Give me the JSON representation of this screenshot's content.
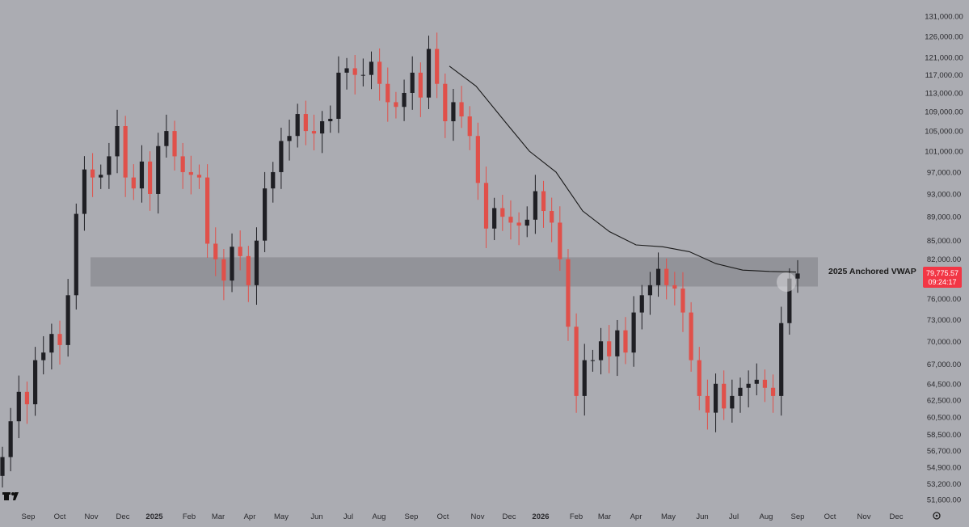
{
  "chart_data": {
    "type": "candlestick",
    "title": "",
    "xlabel": "",
    "ylabel": "",
    "x_tick_labels": [
      "Sep",
      "Oct",
      "Nov",
      "Dec",
      "2025",
      "Feb",
      "Mar",
      "Apr",
      "May",
      "Jun",
      "Jul",
      "Aug",
      "Sep",
      "Oct",
      "Nov",
      "Dec",
      "2026",
      "Feb",
      "Mar",
      "Apr",
      "May",
      "Jun",
      "Jul",
      "Aug",
      "Sep",
      "Oct",
      "Nov",
      "Dec"
    ],
    "y_tick_labels": [
      "131,000.00",
      "126,000.00",
      "121,000.00",
      "117,000.00",
      "113,000.00",
      "109,000.00",
      "105,000.00",
      "101,000.00",
      "97,000.00",
      "93,000.00",
      "89,000.00",
      "85,000.00",
      "82,000.00",
      "79,000.00",
      "76,000.00",
      "73,000.00",
      "70,000.00",
      "67,000.00",
      "64,500.00",
      "62,500.00",
      "60,500.00",
      "58,500.00",
      "56,700.00",
      "54,900.00",
      "53,200.00",
      "51,600.00"
    ],
    "y_tick_values": [
      131000,
      126000,
      121000,
      117000,
      113000,
      109000,
      105000,
      101000,
      97000,
      93000,
      89000,
      85000,
      82000,
      79000,
      76000,
      73000,
      70000,
      67000,
      64500,
      62500,
      60500,
      58500,
      56700,
      54900,
      53200,
      51600
    ],
    "y_scale": "log",
    "ylim": [
      50800,
      133500
    ],
    "grid": false,
    "series": [
      {
        "values": [
          {
            "x": "2024-09",
            "close": 56000
          },
          {
            "x": "2024-09",
            "close": 60000
          },
          {
            "x": "2024-09",
            "close": 63500
          },
          {
            "x": "2024-10",
            "close": 62000
          },
          {
            "x": "2024-10",
            "close": 67500
          },
          {
            "x": "2024-10",
            "close": 68500
          },
          {
            "x": "2024-10",
            "close": 71000
          },
          {
            "x": "2024-11",
            "close": 69500
          },
          {
            "x": "2024-11",
            "close": 76500
          },
          {
            "x": "2024-11",
            "close": 89500
          },
          {
            "x": "2024-11",
            "close": 97500
          },
          {
            "x": "2024-11",
            "close": 96000
          },
          {
            "x": "2024-12",
            "close": 96500
          },
          {
            "x": "2024-12",
            "close": 100000
          },
          {
            "x": "2024-12",
            "close": 106000
          },
          {
            "x": "2024-12",
            "close": 96000
          },
          {
            "x": "2024-12",
            "close": 94000
          },
          {
            "x": "2025-01",
            "close": 99000
          },
          {
            "x": "2025-01",
            "close": 93000
          },
          {
            "x": "2025-01",
            "close": 102000
          },
          {
            "x": "2025-01",
            "close": 105000
          },
          {
            "x": "2025-02",
            "close": 100000
          },
          {
            "x": "2025-02",
            "close": 97000
          },
          {
            "x": "2025-02",
            "close": 96500
          },
          {
            "x": "2025-02",
            "close": 96000
          },
          {
            "x": "2025-03",
            "close": 84500
          },
          {
            "x": "2025-03",
            "close": 82000
          },
          {
            "x": "2025-03",
            "close": 78700
          },
          {
            "x": "2025-03",
            "close": 84000
          },
          {
            "x": "2025-04",
            "close": 82500
          },
          {
            "x": "2025-04",
            "close": 78000
          },
          {
            "x": "2025-04",
            "close": 85000
          },
          {
            "x": "2025-04",
            "close": 94000
          },
          {
            "x": "2025-05",
            "close": 97000
          },
          {
            "x": "2025-05",
            "close": 103000
          },
          {
            "x": "2025-05",
            "close": 104000
          },
          {
            "x": "2025-05",
            "close": 108500
          },
          {
            "x": "2025-06",
            "close": 105000
          },
          {
            "x": "2025-06",
            "close": 104500
          },
          {
            "x": "2025-06",
            "close": 107000
          },
          {
            "x": "2025-06",
            "close": 107500
          },
          {
            "x": "2025-07",
            "close": 117500
          },
          {
            "x": "2025-07",
            "close": 118500
          },
          {
            "x": "2025-07",
            "close": 117000
          },
          {
            "x": "2025-07",
            "close": 117000
          },
          {
            "x": "2025-08",
            "close": 120000
          },
          {
            "x": "2025-08",
            "close": 115000
          },
          {
            "x": "2025-08",
            "close": 111000
          },
          {
            "x": "2025-08",
            "close": 110000
          },
          {
            "x": "2025-09",
            "close": 113000
          },
          {
            "x": "2025-09",
            "close": 117500
          },
          {
            "x": "2025-09",
            "close": 112000
          },
          {
            "x": "2025-09",
            "close": 123000
          },
          {
            "x": "2025-10",
            "close": 115000
          },
          {
            "x": "2025-10",
            "close": 107000
          },
          {
            "x": "2025-10",
            "close": 111000
          },
          {
            "x": "2025-10",
            "close": 108000
          },
          {
            "x": "2025-11",
            "close": 104000
          },
          {
            "x": "2025-11",
            "close": 95000
          },
          {
            "x": "2025-11",
            "close": 87000
          },
          {
            "x": "2025-11",
            "close": 90500
          },
          {
            "x": "2025-12",
            "close": 89000
          },
          {
            "x": "2025-12",
            "close": 88000
          },
          {
            "x": "2025-12",
            "close": 87500
          },
          {
            "x": "2025-12",
            "close": 88500
          },
          {
            "x": "2026-01",
            "close": 93500
          },
          {
            "x": "2026-01",
            "close": 90000
          },
          {
            "x": "2026-01",
            "close": 88000
          },
          {
            "x": "2026-01",
            "close": 82000
          },
          {
            "x": "2026-02",
            "close": 72000
          },
          {
            "x": "2026-02",
            "close": 63000
          },
          {
            "x": "2026-02",
            "close": 67500
          },
          {
            "x": "2026-02",
            "close": 67500
          },
          {
            "x": "2026-03",
            "close": 70000
          },
          {
            "x": "2026-03",
            "close": 68000
          },
          {
            "x": "2026-03",
            "close": 71500
          },
          {
            "x": "2026-03",
            "close": 68500
          },
          {
            "x": "2026-04",
            "close": 74000
          },
          {
            "x": "2026-04",
            "close": 76500
          },
          {
            "x": "2026-04",
            "close": 78000
          },
          {
            "x": "2026-04",
            "close": 80500
          },
          {
            "x": "2026-05",
            "close": 78000
          },
          {
            "x": "2026-05",
            "close": 77500
          },
          {
            "x": "2026-05",
            "close": 74000
          },
          {
            "x": "2026-05",
            "close": 67500
          },
          {
            "x": "2026-06",
            "close": 63000
          },
          {
            "x": "2026-06",
            "close": 61000
          },
          {
            "x": "2026-06",
            "close": 64500
          },
          {
            "x": "2026-06",
            "close": 61500
          },
          {
            "x": "2026-07",
            "close": 63000
          },
          {
            "x": "2026-07",
            "close": 64000
          },
          {
            "x": "2026-07",
            "close": 64500
          },
          {
            "x": "2026-07",
            "close": 65000
          },
          {
            "x": "2026-08",
            "close": 64000
          },
          {
            "x": "2026-08",
            "close": 63000
          },
          {
            "x": "2026-08",
            "close": 72500
          },
          {
            "x": "2026-08",
            "close": 79000
          },
          {
            "x": "2026-09",
            "close": 79775.57
          }
        ]
      },
      {
        "name": "2025 Anchored VWAP",
        "type": "line",
        "values": [
          {
            "x": "2025-10",
            "y": 119000
          },
          {
            "x": "2025-10",
            "y": 114500
          },
          {
            "x": "2025-11",
            "y": 107500
          },
          {
            "x": "2025-12",
            "y": 101000
          },
          {
            "x": "2026-01",
            "y": 97000
          },
          {
            "x": "2026-02",
            "y": 90000
          },
          {
            "x": "2026-03",
            "y": 86500
          },
          {
            "x": "2026-04",
            "y": 84300
          },
          {
            "x": "2026-05",
            "y": 84000
          },
          {
            "x": "2026-06",
            "y": 83200
          },
          {
            "x": "2026-07",
            "y": 81300
          },
          {
            "x": "2026-08",
            "y": 80300
          },
          {
            "x": "2026-08",
            "y": 80100
          },
          {
            "x": "2026-09",
            "y": 80000
          }
        ]
      }
    ],
    "annotations": [
      {
        "type": "zone",
        "y_range": [
          77800,
          82300
        ]
      },
      {
        "type": "label",
        "text": "2025 Anchored VWAP"
      },
      {
        "type": "marker",
        "x": "2026-08",
        "y": 78800
      }
    ],
    "last_price": {
      "value": "79,775.57",
      "countdown": "09:24:17",
      "color": "#f23645"
    },
    "colors": {
      "background": "#abacb2",
      "up_candle": "#1f1f24",
      "down_candle": "#e0504a",
      "zone": "#8f9096",
      "vwap_line": "#1a1a1a",
      "axis_text": "#2a2a2e"
    }
  },
  "logo_icon": "tradingview-logo-icon",
  "settings_icon": "gear-icon"
}
